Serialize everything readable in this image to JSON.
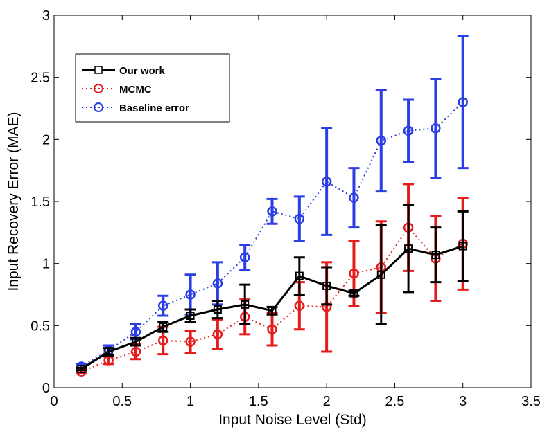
{
  "chart_data": {
    "type": "line",
    "title": "",
    "xlabel": "Input Noise Level (Std)",
    "ylabel": "Input Recovery Error (MAE)",
    "xlim": [
      0,
      3.5
    ],
    "ylim": [
      0,
      3
    ],
    "xticks": [
      0,
      0.5,
      1,
      1.5,
      2,
      2.5,
      3,
      3.5
    ],
    "xtick_labels": [
      "0",
      "0.5",
      "1",
      "1.5",
      "2",
      "2.5",
      "3",
      "3.5"
    ],
    "yticks": [
      0,
      0.5,
      1,
      1.5,
      2,
      2.5,
      3
    ],
    "ytick_labels": [
      "0",
      "0.5",
      "1",
      "1.5",
      "2",
      "2.5",
      "3"
    ],
    "grid": false,
    "legend_position": "top-left",
    "x": [
      0.2,
      0.4,
      0.6,
      0.8,
      1.0,
      1.2,
      1.4,
      1.6,
      1.8,
      2.0,
      2.2,
      2.4,
      2.6,
      2.8,
      3.0
    ],
    "series": [
      {
        "name": "Baseline error",
        "color": "#2b3ee6",
        "marker": "circle",
        "line_style": "dotted",
        "values": [
          0.17,
          0.3,
          0.45,
          0.66,
          0.75,
          0.84,
          1.05,
          1.42,
          1.36,
          1.66,
          1.53,
          1.99,
          2.07,
          2.09,
          2.3
        ],
        "errors": [
          0.02,
          0.04,
          0.06,
          0.08,
          0.16,
          0.17,
          0.1,
          0.1,
          0.18,
          0.43,
          0.24,
          0.41,
          0.25,
          0.4,
          0.53
        ]
      },
      {
        "name": "MCMC",
        "color": "#e61c1c",
        "marker": "circle",
        "line_style": "dotted",
        "values": [
          0.13,
          0.22,
          0.29,
          0.38,
          0.37,
          0.43,
          0.57,
          0.47,
          0.66,
          0.65,
          0.92,
          0.97,
          1.29,
          1.04,
          1.16
        ],
        "errors": [
          0.01,
          0.03,
          0.06,
          0.11,
          0.09,
          0.12,
          0.14,
          0.13,
          0.19,
          0.36,
          0.26,
          0.37,
          0.35,
          0.34,
          0.37
        ]
      },
      {
        "name": "Our work",
        "color": "#000000",
        "marker": "square",
        "line_style": "solid",
        "values": [
          0.15,
          0.29,
          0.37,
          0.49,
          0.58,
          0.63,
          0.67,
          0.62,
          0.9,
          0.82,
          0.76,
          0.91,
          1.12,
          1.07,
          1.14
        ],
        "errors": [
          0.01,
          0.03,
          0.03,
          0.04,
          0.05,
          0.07,
          0.16,
          0.03,
          0.15,
          0.15,
          0.02,
          0.4,
          0.35,
          0.22,
          0.28
        ]
      }
    ],
    "legend": [
      {
        "label": "Our work",
        "color": "#000000",
        "marker": "square",
        "line_style": "solid"
      },
      {
        "label": "MCMC",
        "color": "#e61c1c",
        "marker": "circle",
        "line_style": "dotted"
      },
      {
        "label": "Baseline error",
        "color": "#2b3ee6",
        "marker": "circle",
        "line_style": "dotted"
      }
    ]
  }
}
